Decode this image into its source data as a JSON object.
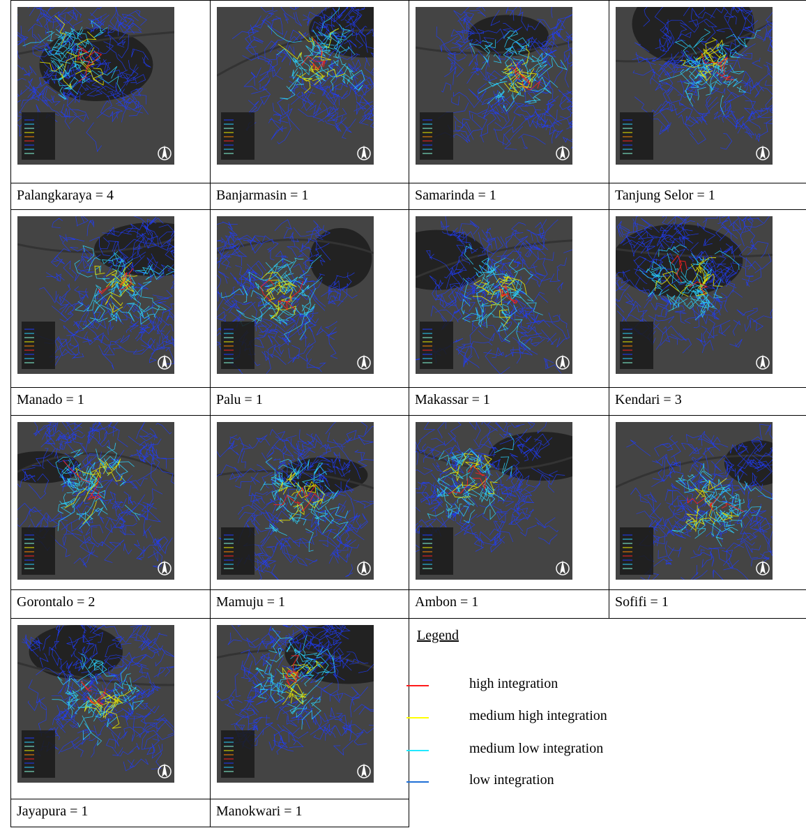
{
  "table": {
    "cells": [
      "Palangkaraya = 4",
      "Banjarmasin = 1",
      "Samarinda = 1",
      "Tanjung Selor = 1",
      "Manado = 1",
      "Palu = 1",
      "Makassar = 1",
      "Kendari = 3",
      "Gorontalo = 2",
      "Mamuju = 1",
      "Ambon = 1",
      "Sofifi = 1",
      "Jayapura = 1",
      "Manokwari = 1"
    ]
  },
  "legend": {
    "title": "Legend",
    "items": [
      {
        "label": "high integration",
        "color": "#ff1a1a"
      },
      {
        "label": "medium high integration",
        "color": "#ffff00"
      },
      {
        "label": "medium low integration",
        "color": "#22e8ff"
      },
      {
        "label": "low integration",
        "color": "#1f6fd6"
      }
    ]
  }
}
